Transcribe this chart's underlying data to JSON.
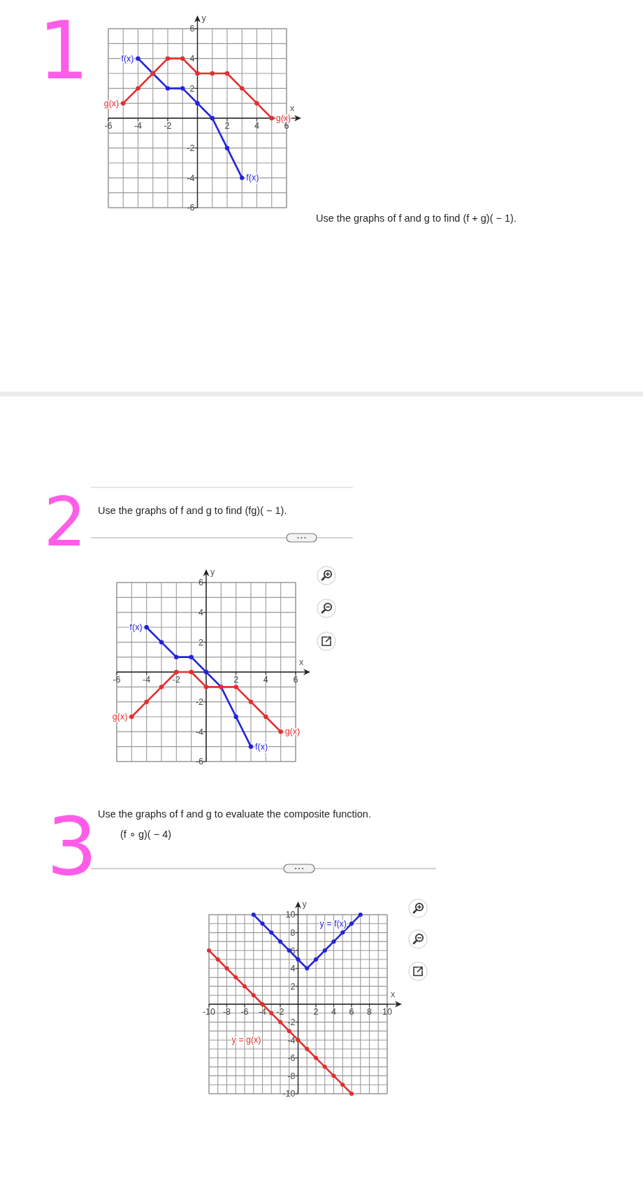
{
  "chart_data": [
    {
      "type": "line",
      "xlabel": "x",
      "ylabel": "y",
      "annotations": [
        "1",
        "Use the graphs of f and g to find (f + g)( − 1)."
      ],
      "xlim": [
        -6,
        6
      ],
      "ylim": [
        -6,
        6
      ],
      "xticks": [
        -6,
        {
          "value": -5,
          "label": null
        },
        -4,
        {
          "value": -3,
          "label": null
        },
        -2,
        {
          "value": -1,
          "label": null
        },
        {
          "value": 0,
          "label": null
        },
        {
          "value": 1,
          "label": null
        },
        2,
        {
          "value": 3,
          "label": null
        },
        4,
        {
          "value": 5,
          "label": null
        },
        6
      ],
      "yticks": [
        -6,
        {
          "value": -5,
          "label": null
        },
        -4,
        {
          "value": -3,
          "label": null
        },
        -2,
        {
          "value": -1,
          "label": null
        },
        {
          "value": 0,
          "label": null
        },
        {
          "value": 1,
          "label": null
        },
        2,
        {
          "value": 3,
          "label": null
        },
        4,
        {
          "value": 5,
          "label": null
        },
        6
      ],
      "grid": true,
      "marker": "circle",
      "line_style": "solid",
      "series": [
        {
          "name": "f(x)",
          "color": "#2222dd",
          "x": [
            -4,
            -3,
            -2,
            -1,
            0,
            1,
            2,
            3
          ],
          "values": [
            4,
            3,
            2,
            2,
            1,
            0,
            -2,
            -4
          ]
        },
        {
          "name": "g(x)",
          "color": "#e52d2d",
          "x": [
            -5,
            -4,
            -3,
            -2,
            -1,
            0,
            1,
            2,
            3,
            4,
            5
          ],
          "values": [
            1,
            2,
            3,
            4,
            4,
            3,
            3,
            3,
            2,
            1,
            0
          ]
        }
      ]
    },
    {
      "type": "line",
      "title": "Use the graphs of f and g to find (fg)( − 1).",
      "xlabel": "x",
      "ylabel": "y",
      "annotations": [
        "2"
      ],
      "xlim": [
        -6,
        6
      ],
      "ylim": [
        -6,
        6
      ],
      "xticks": [
        -6,
        {
          "value": -5,
          "label": null
        },
        -4,
        {
          "value": -3,
          "label": null
        },
        -2,
        {
          "value": -1,
          "label": null
        },
        {
          "value": 0,
          "label": null
        },
        {
          "value": 1,
          "label": null
        },
        2,
        {
          "value": 3,
          "label": null
        },
        4,
        {
          "value": 5,
          "label": null
        },
        6
      ],
      "yticks": [
        -6,
        {
          "value": -5,
          "label": null
        },
        -4,
        {
          "value": -3,
          "label": null
        },
        -2,
        {
          "value": -1,
          "label": null
        },
        {
          "value": 0,
          "label": null
        },
        {
          "value": 1,
          "label": null
        },
        2,
        {
          "value": 3,
          "label": null
        },
        4,
        {
          "value": 5,
          "label": null
        },
        6
      ],
      "grid": true,
      "marker": "circle",
      "line_style": "solid",
      "series": [
        {
          "name": "f(x)",
          "color": "#2222dd",
          "x": [
            -4,
            -3,
            -2,
            -1,
            0,
            1,
            2,
            3
          ],
          "values": [
            3,
            2,
            1,
            1,
            0,
            -1,
            -3,
            -5
          ]
        },
        {
          "name": "g(x)",
          "color": "#e52d2d",
          "x": [
            -5,
            -4,
            -3,
            -2,
            -1,
            0,
            1,
            2,
            3,
            4,
            5
          ],
          "values": [
            -3,
            -2,
            -1,
            0,
            0,
            -1,
            -1,
            -1,
            -2,
            -3,
            -4
          ]
        }
      ]
    },
    {
      "type": "line",
      "title": "Use the graphs of f and g to evaluate the composite function.\n(f ∘ g)( − 4)",
      "xlabel": "x",
      "ylabel": "y",
      "annotations": [
        "3"
      ],
      "xlim": [
        -10,
        10
      ],
      "ylim": [
        -10,
        10
      ],
      "xticks": [
        -10,
        {
          "value": -9,
          "label": null
        },
        -8,
        {
          "value": -7,
          "label": null
        },
        -6,
        {
          "value": -5,
          "label": null
        },
        -4,
        {
          "value": -3,
          "label": null
        },
        -2,
        {
          "value": -1,
          "label": null
        },
        {
          "value": 0,
          "label": null
        },
        {
          "value": 1,
          "label": null
        },
        2,
        {
          "value": 3,
          "label": null
        },
        4,
        {
          "value": 5,
          "label": null
        },
        6,
        {
          "value": 7,
          "label": null
        },
        8,
        {
          "value": 9,
          "label": null
        },
        10
      ],
      "yticks": [
        -10,
        {
          "value": -9,
          "label": null
        },
        -8,
        {
          "value": -7,
          "label": null
        },
        -6,
        {
          "value": -5,
          "label": null
        },
        -4,
        {
          "value": -3,
          "label": null
        },
        -2,
        {
          "value": -1,
          "label": null
        },
        {
          "value": 0,
          "label": null
        },
        {
          "value": 1,
          "label": null
        },
        2,
        {
          "value": 3,
          "label": null
        },
        4,
        {
          "value": 5,
          "label": null
        },
        6,
        {
          "value": 7,
          "label": null
        },
        8,
        {
          "value": 9,
          "label": null
        },
        10
      ],
      "grid": true,
      "marker": "circle",
      "line_style": "solid",
      "series": [
        {
          "name": "y = f(x)",
          "color": "#2222dd",
          "x": [
            -5,
            -4,
            -3,
            -2,
            -1,
            0,
            1,
            2,
            3,
            4,
            5,
            6,
            7
          ],
          "values": [
            10,
            9,
            8,
            7,
            6,
            5,
            4,
            5,
            6,
            7,
            8,
            9,
            10
          ]
        },
        {
          "name": "y = g(x)",
          "color": "#e52d2d",
          "x": [
            -10,
            -9,
            -8,
            -7,
            -6,
            -5,
            -4,
            -3,
            -2,
            -1,
            0,
            1,
            2,
            3,
            4,
            5,
            6
          ],
          "values": [
            6,
            5,
            4,
            3,
            2,
            1,
            0,
            -1,
            -2,
            -3,
            -4,
            -5,
            -6,
            -7,
            -8,
            -9,
            -10
          ]
        }
      ]
    }
  ]
}
